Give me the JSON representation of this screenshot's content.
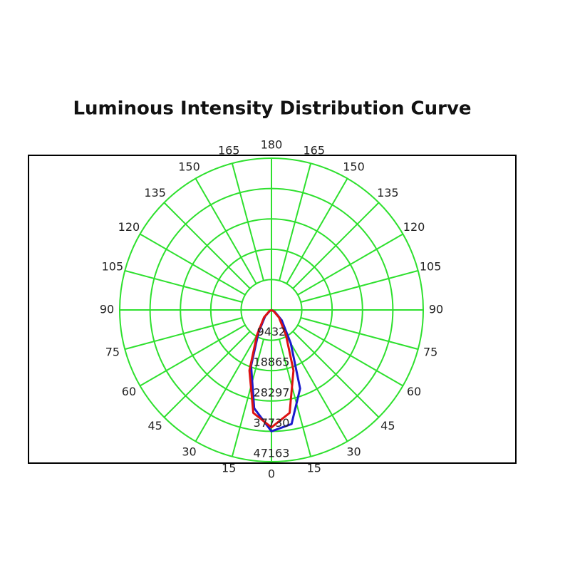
{
  "chart_data": {
    "type": "polar",
    "title": "Luminous Intensity Distribution Curve",
    "x": [
      -90,
      -60,
      -45,
      -30,
      -20,
      -10,
      0,
      10,
      20,
      30,
      45,
      60,
      90
    ],
    "series": [
      {
        "color": "#1a1acc",
        "values": [
          0,
          600,
          2800,
          8000,
          18500,
          31000,
          37700,
          36000,
          26000,
          12000,
          4500,
          1200,
          0
        ]
      },
      {
        "color": "#dd1111",
        "values": [
          0,
          800,
          3300,
          9000,
          20000,
          32500,
          36500,
          32500,
          20000,
          9000,
          3300,
          800,
          0
        ]
      }
    ],
    "xticks": [
      0,
      15,
      30,
      45,
      60,
      75,
      90,
      105,
      120,
      135,
      150,
      165,
      180
    ],
    "rlim": [
      0,
      47163
    ],
    "rticks": [
      9432,
      18865,
      28297,
      37730,
      47163
    ],
    "grid_color": "#2ee02e",
    "grid": true
  }
}
